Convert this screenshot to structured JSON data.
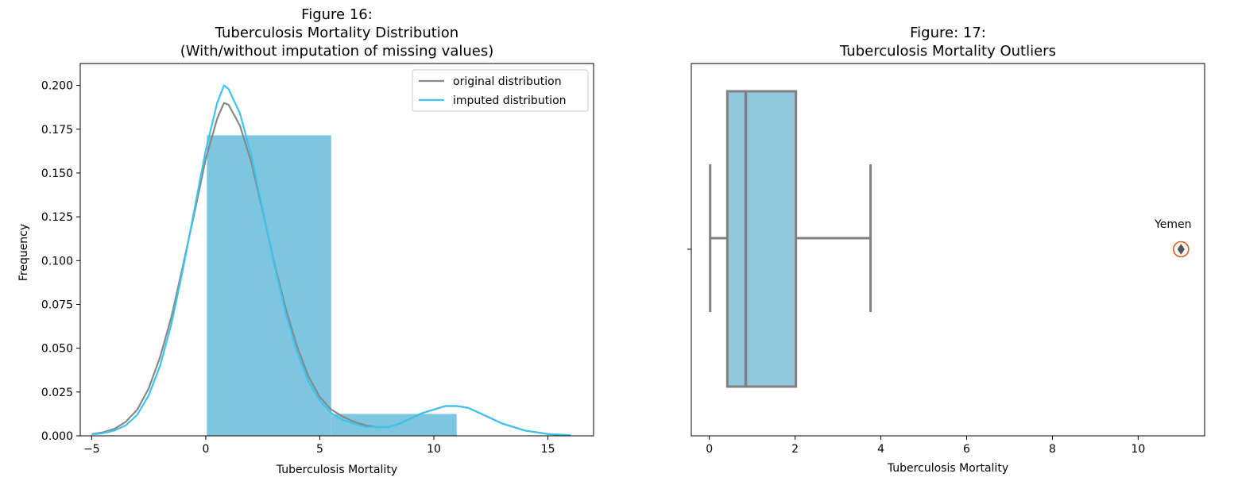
{
  "colors": {
    "bar": "#7ec6e0",
    "original_line": "#888888",
    "imputed_line": "#3cc4f0",
    "box_fill": "#92c9de",
    "box_edge": "#808080",
    "outlier_circle": "#e0591b"
  },
  "chart_data": [
    {
      "type": "bar",
      "title_lines": [
        "Figure 16:",
        "Tuberculosis Mortality Distribution",
        "(With/without imputation of missing values)"
      ],
      "xlabel": "Tuberculosis Mortality",
      "ylabel": "Frequency",
      "xlim": [
        -5.5,
        17
      ],
      "ylim": [
        0,
        0.2125
      ],
      "xticks": [
        -5,
        0,
        5,
        10,
        15
      ],
      "xtick_labels": [
        "−5",
        "0",
        "5",
        "10",
        "15"
      ],
      "yticks": [
        0,
        0.025,
        0.05,
        0.075,
        0.1,
        0.125,
        0.15,
        0.175,
        0.2
      ],
      "ytick_labels": [
        "0.000",
        "0.025",
        "0.050",
        "0.075",
        "0.100",
        "0.125",
        "0.150",
        "0.175",
        "0.200"
      ],
      "bins": [
        {
          "x0": 0.05,
          "x1": 5.5,
          "value": 0.1715
        },
        {
          "x0": 5.5,
          "x1": 11.0,
          "value": 0.0125
        }
      ],
      "series": [
        {
          "name": "original distribution",
          "x": [
            -5,
            -4.5,
            -4,
            -3.5,
            -3,
            -2.5,
            -2,
            -1.5,
            -1,
            -0.5,
            0,
            0.5,
            0.8,
            1,
            1.5,
            2,
            2.5,
            3,
            3.5,
            4,
            4.5,
            5,
            5.5,
            6,
            6.5,
            7,
            7.5,
            8,
            8.5,
            9,
            9.5,
            10,
            10.5,
            11,
            11.5,
            12,
            12.5,
            13,
            13.5,
            14,
            14.5,
            15,
            15.5,
            16
          ],
          "y": [
            0.001,
            0.002,
            0.004,
            0.008,
            0.015,
            0.027,
            0.045,
            0.068,
            0.097,
            0.127,
            0.158,
            0.181,
            0.19,
            0.189,
            0.177,
            0.156,
            0.128,
            0.099,
            0.073,
            0.051,
            0.034,
            0.022,
            0.015,
            0.011,
            0.008,
            0.006,
            0.005,
            0.005,
            0.007,
            0.01,
            0.013,
            0.015,
            0.017,
            0.017,
            0.016,
            0.013,
            0.01,
            0.007,
            0.005,
            0.003,
            0.002,
            0.001,
            0.0007,
            0.0003
          ]
        },
        {
          "name": "imputed distribution",
          "x": [
            -5,
            -4.5,
            -4,
            -3.5,
            -3,
            -2.5,
            -2,
            -1.5,
            -1,
            -0.5,
            0,
            0.5,
            0.8,
            1,
            1.5,
            2,
            2.5,
            3,
            3.5,
            4,
            4.5,
            5,
            5.5,
            6,
            6.5,
            7,
            7.5,
            8,
            8.5,
            9,
            9.5,
            10,
            10.5,
            11,
            11.5,
            12,
            12.5,
            13,
            13.5,
            14,
            14.5,
            15,
            15.5,
            16
          ],
          "y": [
            0.0008,
            0.0015,
            0.003,
            0.006,
            0.012,
            0.023,
            0.04,
            0.064,
            0.095,
            0.129,
            0.163,
            0.19,
            0.2,
            0.198,
            0.184,
            0.16,
            0.129,
            0.098,
            0.07,
            0.048,
            0.031,
            0.02,
            0.013,
            0.009,
            0.007,
            0.005,
            0.005,
            0.005,
            0.007,
            0.01,
            0.013,
            0.015,
            0.017,
            0.017,
            0.016,
            0.013,
            0.01,
            0.007,
            0.005,
            0.003,
            0.002,
            0.001,
            0.0007,
            0.0003
          ]
        }
      ],
      "legend_location": "upper right",
      "grid": false
    },
    {
      "type": "box",
      "title_lines": [
        "Figure: 17:",
        "Tuberculosis Mortality Outliers"
      ],
      "xlabel": "Tuberculosis Mortality",
      "ylabel": "",
      "xlim": [
        -0.42,
        11.55
      ],
      "xticks": [
        0,
        2,
        4,
        6,
        8,
        10
      ],
      "xtick_labels": [
        "0",
        "2",
        "4",
        "6",
        "8",
        "10"
      ],
      "box": {
        "whisker_low": 0.02,
        "q1": 0.42,
        "median": 0.85,
        "q3": 2.02,
        "whisker_high": 3.76
      },
      "outliers": [
        {
          "value": 11.0,
          "label": "Yemen"
        }
      ],
      "grid": false
    }
  ]
}
